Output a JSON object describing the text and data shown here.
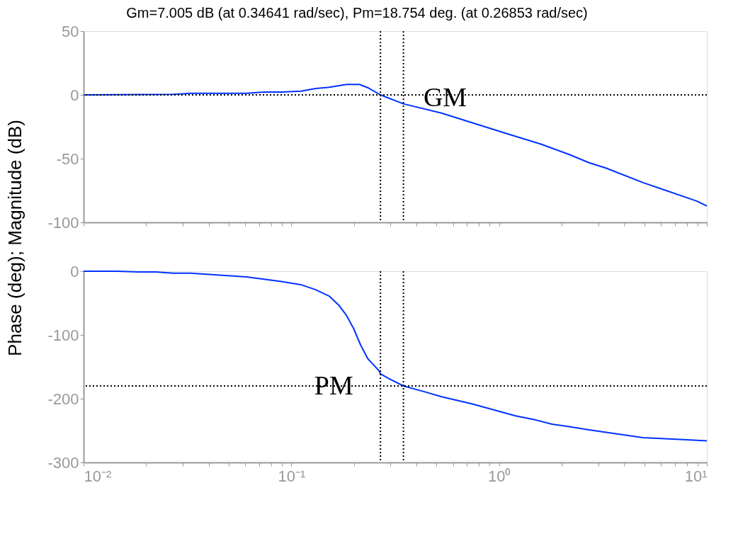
{
  "chart_data": [
    {
      "type": "line",
      "title": "Gm=7.005 dB (at 0.34641 rad/sec), Pm=18.754 deg. (at 0.26853 rad/sec)",
      "ylabel": "Phase (deg); Magnitude (dB)",
      "x": [
        0.01,
        0.0269,
        0.0327,
        0.0608,
        0.0738,
        0.0894,
        0.111,
        0.131,
        0.152,
        0.184,
        0.213,
        0.233,
        0.2685,
        0.3464,
        0.529,
        0.855,
        1.14,
        1.59,
        2.18,
        2.71,
        3.28,
        4.93,
        6.11,
        8.98,
        10
      ],
      "series": [
        {
          "color": "#0033ff",
          "values": [
            0,
            0.4,
            1.3,
            1.3,
            2.2,
            2.2,
            2.9,
            5,
            6,
            8.2,
            8.2,
            5.7,
            0,
            -7,
            -14.3,
            -25,
            -31.4,
            -38.6,
            -46.8,
            -53.2,
            -57.5,
            -68.8,
            -74,
            -83.4,
            -87.2
          ]
        }
      ],
      "xlim": [
        0.01,
        10
      ],
      "log": "x",
      "xticks": [
        {
          "value": 0.01,
          "label": null
        },
        {
          "value": 0.02,
          "label": null
        },
        {
          "value": 0.03,
          "label": null
        },
        {
          "value": 0.04,
          "label": null
        },
        {
          "value": 0.05,
          "label": null
        },
        {
          "value": 0.06,
          "label": null
        },
        {
          "value": 0.07,
          "label": null
        },
        {
          "value": 0.08,
          "label": null
        },
        {
          "value": 0.09,
          "label": null
        },
        {
          "value": 0.1,
          "label": null
        },
        {
          "value": 0.2,
          "label": null
        },
        {
          "value": 0.3,
          "label": null
        },
        {
          "value": 0.4,
          "label": null
        },
        {
          "value": 0.5,
          "label": null
        },
        {
          "value": 0.6,
          "label": null
        },
        {
          "value": 0.7,
          "label": null
        },
        {
          "value": 0.8,
          "label": null
        },
        {
          "value": 0.9,
          "label": null
        },
        {
          "value": 1,
          "label": null
        },
        {
          "value": 2,
          "label": null
        },
        {
          "value": 3,
          "label": null
        },
        {
          "value": 4,
          "label": null
        },
        {
          "value": 5,
          "label": null
        },
        {
          "value": 6,
          "label": null
        },
        {
          "value": 7,
          "label": null
        },
        {
          "value": 8,
          "label": null
        },
        {
          "value": 9,
          "label": null
        },
        {
          "value": 10,
          "label": null
        }
      ],
      "ylim": [
        -100,
        50
      ],
      "yticks": [
        -100,
        -50,
        0,
        50
      ],
      "tick_labels": "y",
      "grid": false,
      "marker": "none",
      "line_style": "solid",
      "ref_lines": [
        {
          "axis": "y",
          "value": 0,
          "color": "#000000",
          "line_style": "dotted"
        },
        {
          "axis": "x",
          "value": 0.26853,
          "color": "#000000",
          "line_style": "dotted"
        },
        {
          "axis": "x",
          "value": 0.34641,
          "color": "#000000",
          "line_style": "dotted"
        }
      ],
      "annotations": [
        {
          "text": "GM",
          "x": 0.55,
          "y": -2.5
        }
      ]
    },
    {
      "type": "line",
      "x": [
        0.01,
        0.0145,
        0.0184,
        0.0222,
        0.0269,
        0.0327,
        0.0608,
        0.0894,
        0.111,
        0.131,
        0.152,
        0.169,
        0.184,
        0.1995,
        0.215,
        0.233,
        0.264,
        0.2685,
        0.297,
        0.3464,
        0.437,
        0.529,
        0.74,
        1.2,
        1.49,
        1.8,
        2.18,
        2.71,
        4.93,
        7.41,
        10
      ],
      "series": [
        {
          "color": "#0033ff",
          "values": [
            0,
            0,
            -1,
            -1,
            -3,
            -3,
            -9,
            -16,
            -21,
            -29,
            -39,
            -53,
            -69,
            -90,
            -115,
            -137,
            -156,
            -161,
            -169,
            -180,
            -189,
            -197,
            -208,
            -227,
            -233,
            -240,
            -244,
            -249,
            -261,
            -264,
            -266
          ]
        }
      ],
      "xlim": [
        0.01,
        10
      ],
      "log": "x",
      "xticks": [
        {
          "value": 0.01,
          "label": "10⁻²"
        },
        {
          "value": 0.02,
          "label": null
        },
        {
          "value": 0.03,
          "label": null
        },
        {
          "value": 0.04,
          "label": null
        },
        {
          "value": 0.05,
          "label": null
        },
        {
          "value": 0.06,
          "label": null
        },
        {
          "value": 0.07,
          "label": null
        },
        {
          "value": 0.08,
          "label": null
        },
        {
          "value": 0.09,
          "label": null
        },
        {
          "value": 0.1,
          "label": "10⁻¹"
        },
        {
          "value": 0.2,
          "label": null
        },
        {
          "value": 0.3,
          "label": null
        },
        {
          "value": 0.4,
          "label": null
        },
        {
          "value": 0.5,
          "label": null
        },
        {
          "value": 0.6,
          "label": null
        },
        {
          "value": 0.7,
          "label": null
        },
        {
          "value": 0.8,
          "label": null
        },
        {
          "value": 0.9,
          "label": null
        },
        {
          "value": 1,
          "label": "10⁰"
        },
        {
          "value": 2,
          "label": null
        },
        {
          "value": 3,
          "label": null
        },
        {
          "value": 4,
          "label": null
        },
        {
          "value": 5,
          "label": null
        },
        {
          "value": 6,
          "label": null
        },
        {
          "value": 7,
          "label": null
        },
        {
          "value": 8,
          "label": null
        },
        {
          "value": 9,
          "label": null
        },
        {
          "value": 10,
          "label": "10¹"
        }
      ],
      "ylim": [
        -300,
        0
      ],
      "yticks": [
        -300,
        -200,
        -100,
        0
      ],
      "grid": false,
      "marker": "none",
      "line_style": "solid",
      "ref_lines": [
        {
          "axis": "y",
          "value": -180,
          "color": "#000000",
          "line_style": "dotted"
        },
        {
          "axis": "x",
          "value": 0.26853,
          "color": "#000000",
          "line_style": "dotted"
        },
        {
          "axis": "x",
          "value": 0.34641,
          "color": "#000000",
          "line_style": "dotted"
        }
      ],
      "annotations": [
        {
          "text": "PM",
          "x": 0.16,
          "y": -181
        }
      ]
    }
  ]
}
